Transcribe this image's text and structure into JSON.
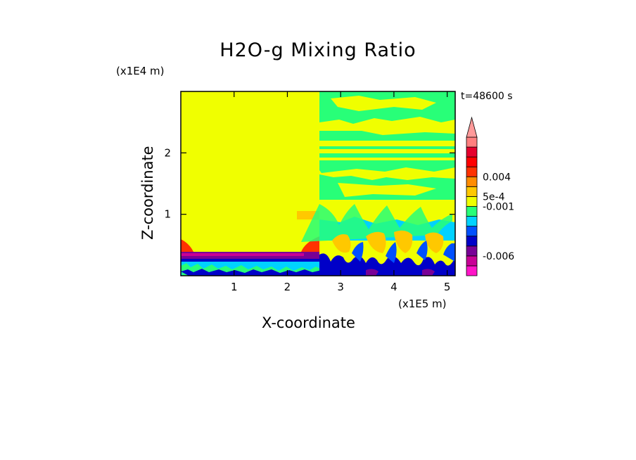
{
  "chart_data": {
    "type": "heatmap",
    "title": "H2O-g Mixing Ratio",
    "xlabel": "X-coordinate",
    "ylabel": "Z-coordinate",
    "x_multiplier": "(x1E5 m)",
    "y_multiplier": "(x1E4 m)",
    "time_label": "t=48600 s",
    "xlim": [
      0,
      5.15
    ],
    "ylim": [
      0,
      3.0
    ],
    "x_ticks": [
      1,
      2,
      3,
      4,
      5
    ],
    "y_ticks": [
      1,
      2
    ],
    "colorbar": {
      "colors": [
        "#ff14c8",
        "#c80096",
        "#780096",
        "#0000c8",
        "#0050ff",
        "#00d2ff",
        "#28ff78",
        "#f0ff00",
        "#ffc800",
        "#ff8c00",
        "#ff3200",
        "#ff0000",
        "#e6002d",
        "#ff7f7f"
      ],
      "labels": [
        {
          "text": "0.004",
          "level": 10
        },
        {
          "text": "5e-4",
          "level": 8
        },
        {
          "text": "-0.001",
          "level": 7
        },
        {
          "text": "-0.006",
          "level": 2
        }
      ],
      "extend_top": true
    },
    "regions": [
      {
        "name": "left-background",
        "x": [
          0,
          2.55
        ],
        "z": [
          0.4,
          3.0
        ],
        "value_color": "#f0ff00"
      },
      {
        "name": "right-background",
        "x": [
          2.55,
          5.15
        ],
        "z": [
          0.4,
          3.0
        ],
        "value_color": "#f0ff00"
      },
      {
        "name": "surface-layer",
        "x": [
          0,
          5.15
        ],
        "z": [
          0,
          0.4
        ],
        "value_color": "#0000c8"
      }
    ]
  }
}
